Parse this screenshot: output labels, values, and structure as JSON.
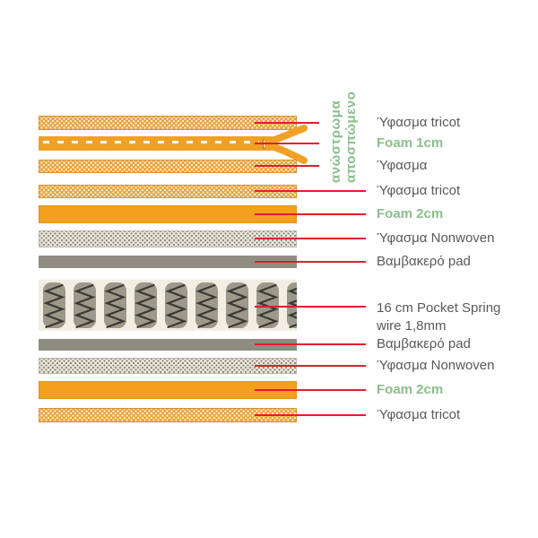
{
  "note": {
    "line1": "ανώστρωμα",
    "line2": "αποσπώμενο"
  },
  "layers": [
    {
      "label": "Ύφασμα tricot",
      "pattern": "dotted-orange"
    },
    {
      "label": "Foam 1cm",
      "pattern": "solid-orange-zipper",
      "emphasis": true
    },
    {
      "label": "Ύφασμα",
      "pattern": "dotted-orange"
    },
    {
      "label": "Ύφασμα tricot",
      "pattern": "dotted-orange"
    },
    {
      "label": "Foam 2cm",
      "pattern": "solid-orange",
      "emphasis": true
    },
    {
      "label": "Ύφασμα Nonwoven",
      "pattern": "dotted-gray"
    },
    {
      "label": "Βαμβακερό pad",
      "pattern": "solid-gray"
    },
    {
      "label": "16 cm Pocket Spring",
      "label2": "wire 1,8mm",
      "pattern": "pocket-springs"
    },
    {
      "label": "Βαμβακερό pad",
      "pattern": "solid-gray"
    },
    {
      "label": "Ύφασμα Nonwoven",
      "pattern": "dotted-gray"
    },
    {
      "label": "Foam 2cm",
      "pattern": "solid-orange",
      "emphasis": true
    },
    {
      "label": "Ύφασμα tricot",
      "pattern": "dotted-orange"
    }
  ],
  "colors": {
    "accent_orange": "#F3A01F",
    "label_gray": "#58595B",
    "foam_green": "#8CBD8E",
    "callout_red": "#E8192E"
  }
}
